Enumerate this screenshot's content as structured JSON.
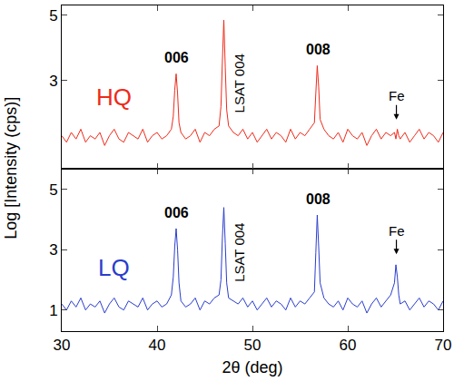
{
  "chart_data": [
    {
      "type": "line",
      "panel_label": {
        "text": "HQ",
        "x": 35.5,
        "y": 2.5
      },
      "color": "#ee2a1a",
      "x": [
        30,
        30.5,
        31,
        31.5,
        32,
        32.5,
        33,
        33.5,
        34,
        34.5,
        35,
        35.5,
        36,
        36.5,
        37,
        37.5,
        38,
        38.5,
        39,
        39.5,
        40,
        40.5,
        41,
        41.5,
        41.7,
        41.85,
        42,
        42.15,
        42.3,
        42.5,
        43,
        43.5,
        44,
        44.5,
        45,
        45.5,
        46,
        46.5,
        46.7,
        46.85,
        47,
        47.15,
        47.3,
        47.5,
        48,
        48.5,
        49,
        49.5,
        50,
        50.5,
        51,
        51.5,
        52,
        52.5,
        53,
        53.5,
        54,
        54.5,
        55,
        55.5,
        56,
        56.5,
        56.65,
        56.8,
        56.95,
        57.1,
        57.5,
        58,
        58.5,
        59,
        59.5,
        60,
        60.5,
        61,
        61.5,
        62,
        62.5,
        63,
        63.5,
        64,
        64.5,
        64.9,
        65.05,
        65.2,
        65.35,
        65.5,
        66,
        66.5,
        67,
        67.5,
        68,
        68.5,
        69,
        69.5,
        70
      ],
      "values": [
        1.3,
        1.1,
        1.4,
        1.2,
        1.5,
        1.1,
        1.3,
        1.2,
        1.4,
        1.0,
        1.3,
        1.5,
        1.2,
        1.1,
        1.4,
        1.3,
        1.2,
        1.5,
        1.1,
        1.3,
        1.4,
        1.2,
        1.3,
        1.5,
        1.9,
        2.7,
        3.2,
        2.6,
        1.7,
        1.4,
        1.2,
        1.3,
        1.5,
        1.1,
        1.4,
        1.3,
        1.5,
        1.6,
        2.2,
        3.6,
        4.85,
        3.4,
        2.1,
        1.6,
        1.4,
        1.3,
        1.5,
        1.2,
        1.4,
        1.1,
        1.3,
        1.5,
        1.2,
        1.4,
        1.3,
        1.1,
        1.5,
        1.2,
        1.4,
        1.3,
        1.5,
        1.7,
        2.6,
        3.45,
        2.8,
        1.8,
        1.5,
        1.3,
        1.2,
        1.4,
        1.1,
        1.5,
        1.3,
        1.2,
        1.4,
        1.0,
        1.3,
        1.5,
        1.2,
        1.4,
        1.3,
        1.4,
        1.2,
        1.5,
        1.3,
        1.2,
        1.4,
        1.1,
        1.3,
        1.5,
        1.2,
        1.4,
        1.3,
        1.1,
        1.4
      ],
      "xlim": [
        30,
        70
      ],
      "xticks": [
        30,
        40,
        50,
        60,
        70
      ],
      "ylim": [
        0.3,
        5.3
      ],
      "yticks": [
        3,
        5
      ],
      "tick_labels": "y",
      "grid": false,
      "annotations": [
        {
          "text": "006",
          "x": 42.0,
          "y": 3.4
        },
        {
          "text": "008",
          "x": 56.9,
          "y": 3.65
        }
      ],
      "vertical_labels": [
        {
          "text": "LSAT 004",
          "x": 48.6,
          "y": 2.9
        }
      ],
      "arrows": [
        {
          "text": "Fe",
          "x": 65.1,
          "y": 1.8
        }
      ]
    },
    {
      "type": "line",
      "panel_label": {
        "text": "LQ",
        "x": 35.5,
        "y": 2.4
      },
      "color": "#2a3dcc",
      "x": [
        30,
        30.5,
        31,
        31.5,
        32,
        32.5,
        33,
        33.5,
        34,
        34.5,
        35,
        35.5,
        36,
        36.5,
        37,
        37.5,
        38,
        38.5,
        39,
        39.5,
        40,
        40.5,
        41,
        41.5,
        41.7,
        41.85,
        42,
        42.15,
        42.3,
        42.5,
        43,
        43.5,
        44,
        44.5,
        45,
        45.5,
        46,
        46.5,
        46.7,
        46.85,
        47,
        47.15,
        47.3,
        47.5,
        48,
        48.5,
        49,
        49.5,
        50,
        50.5,
        51,
        51.5,
        52,
        52.5,
        53,
        53.5,
        54,
        54.5,
        55,
        55.5,
        56,
        56.5,
        56.65,
        56.8,
        56.95,
        57.1,
        57.5,
        58,
        58.5,
        59,
        59.5,
        60,
        60.5,
        61,
        61.5,
        62,
        62.5,
        63,
        63.5,
        64,
        64.5,
        64.9,
        65.05,
        65.2,
        65.35,
        65.5,
        66,
        66.5,
        67,
        67.5,
        68,
        68.5,
        69,
        69.5,
        70
      ],
      "values": [
        1.2,
        1.0,
        1.3,
        1.1,
        1.4,
        1.0,
        1.2,
        1.1,
        1.3,
        0.9,
        1.2,
        1.4,
        1.1,
        1.0,
        1.3,
        1.2,
        1.1,
        1.4,
        1.0,
        1.2,
        1.3,
        1.1,
        1.2,
        1.5,
        2.1,
        3.1,
        3.7,
        3.0,
        1.9,
        1.3,
        1.1,
        1.2,
        1.4,
        1.0,
        1.3,
        1.2,
        1.4,
        1.5,
        2.0,
        3.4,
        4.4,
        3.2,
        1.9,
        1.4,
        1.3,
        1.2,
        1.4,
        1.1,
        1.3,
        1.0,
        1.2,
        1.4,
        1.1,
        1.3,
        1.2,
        1.0,
        1.4,
        1.1,
        1.3,
        1.2,
        1.4,
        1.6,
        2.9,
        4.15,
        3.1,
        1.9,
        1.4,
        1.2,
        1.1,
        1.3,
        1.0,
        1.4,
        1.2,
        1.1,
        1.3,
        0.9,
        1.2,
        1.4,
        1.1,
        1.3,
        1.5,
        1.9,
        2.5,
        2.1,
        1.5,
        1.2,
        1.3,
        1.0,
        1.2,
        1.4,
        1.1,
        1.3,
        1.2,
        1.0,
        1.3
      ],
      "x_label": "2θ (deg)",
      "y_label": "Log [Intensity (cps)]",
      "xlim": [
        30,
        70
      ],
      "xticks": [
        30,
        40,
        50,
        60,
        70
      ],
      "ylim": [
        0.3,
        5.7
      ],
      "yticks": [
        1,
        3,
        5
      ],
      "tick_labels": true,
      "grid": false,
      "annotations": [
        {
          "text": "006",
          "x": 42.0,
          "y": 3.9
        },
        {
          "text": "008",
          "x": 56.9,
          "y": 4.35
        }
      ],
      "vertical_labels": [
        {
          "text": "LSAT 004",
          "x": 48.6,
          "y": 2.9
        }
      ],
      "arrows": [
        {
          "text": "Fe",
          "x": 65.1,
          "y": 2.85
        }
      ]
    }
  ]
}
